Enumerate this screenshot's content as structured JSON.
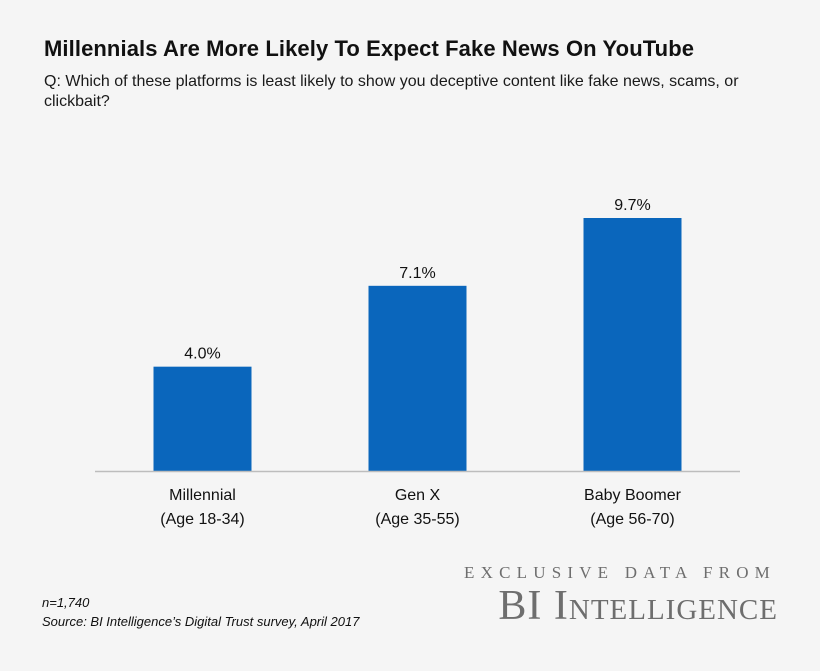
{
  "header": {
    "title": "Millennials Are More Likely To Expect Fake News On YouTube",
    "subtitle": "Q: Which of these platforms is least likely to show you deceptive content like fake news, scams, or clickbait?"
  },
  "footer": {
    "sample": "n=1,740",
    "source": "Source: BI Intelligence’s Digital Trust survey, April 2017",
    "brand_line1": "Exclusive Data From",
    "brand_line2": "BI Intelligence"
  },
  "colors": {
    "bar": "#0a66bc",
    "axis": "#bdbdbd"
  },
  "chart_data": {
    "type": "bar",
    "categories": [
      [
        "Millennial",
        "(Age 18-34)"
      ],
      [
        "Gen X",
        "(Age 35-55)"
      ],
      [
        "Baby Boomer",
        "(Age 56-70)"
      ]
    ],
    "values": [
      4.0,
      7.1,
      9.7
    ],
    "value_labels": [
      "4.0%",
      "7.1%",
      "9.7%"
    ],
    "title": "Millennials Are More Likely To Expect Fake News On YouTube",
    "xlabel": "",
    "ylabel": "",
    "ylim": [
      0,
      9.7
    ],
    "grid": false,
    "legend": "none"
  }
}
